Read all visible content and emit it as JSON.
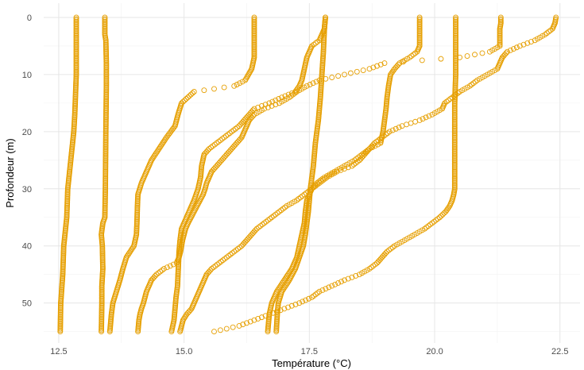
{
  "chart_data": {
    "type": "scatter",
    "title": "",
    "xlabel": "Température (°C)",
    "ylabel": "Profondeur (m)",
    "xlim": [
      12.2,
      22.9
    ],
    "ylim": [
      57,
      -2.5
    ],
    "y_reversed": true,
    "x_ticks": [
      12.5,
      15.0,
      17.5,
      20.0,
      22.5
    ],
    "x_tick_labels": [
      "12.5",
      "15.0",
      "17.5",
      "20.0",
      "22.5"
    ],
    "y_ticks": [
      0,
      10,
      20,
      30,
      40,
      50
    ],
    "y_tick_labels": [
      "0",
      "10",
      "20",
      "30",
      "40",
      "50"
    ],
    "grid": true,
    "legend": "none",
    "marker": "open-circle",
    "marker_color": "#E69F00",
    "series": [
      {
        "profile": [
          [
            0,
            12.85
          ],
          [
            5,
            12.85
          ],
          [
            10,
            12.85
          ],
          [
            17,
            12.82
          ],
          [
            20,
            12.8
          ],
          [
            25,
            12.74
          ],
          [
            30,
            12.68
          ],
          [
            35,
            12.66
          ],
          [
            40,
            12.6
          ],
          [
            45,
            12.58
          ],
          [
            50,
            12.54
          ],
          [
            55,
            12.53
          ]
        ]
      },
      {
        "profile": [
          [
            0,
            13.42
          ],
          [
            3,
            13.42
          ],
          [
            4,
            13.44
          ],
          [
            8,
            13.45
          ],
          [
            12,
            13.45
          ],
          [
            20,
            13.44
          ],
          [
            30,
            13.43
          ],
          [
            35,
            13.42
          ],
          [
            36,
            13.38
          ],
          [
            38,
            13.35
          ],
          [
            40,
            13.37
          ],
          [
            44,
            13.38
          ],
          [
            47,
            13.36
          ],
          [
            50,
            13.36
          ],
          [
            55,
            13.35
          ]
        ]
      },
      {
        "profile": [
          [
            0,
            16.4
          ],
          [
            7,
            16.4
          ],
          [
            9,
            16.35
          ],
          [
            11,
            16.22
          ],
          [
            12,
            16.0
          ],
          [
            13,
            15.2
          ],
          [
            15,
            14.95
          ],
          [
            17,
            14.88
          ],
          [
            19,
            14.82
          ],
          [
            21,
            14.65
          ],
          [
            23,
            14.5
          ],
          [
            25,
            14.35
          ],
          [
            27,
            14.25
          ],
          [
            29,
            14.15
          ],
          [
            31,
            14.08
          ],
          [
            33,
            14.07
          ],
          [
            36,
            14.06
          ],
          [
            38,
            14.05
          ],
          [
            40,
            14.0
          ],
          [
            42,
            13.85
          ],
          [
            44,
            13.78
          ],
          [
            46,
            13.72
          ],
          [
            48,
            13.65
          ],
          [
            50,
            13.58
          ],
          [
            52,
            13.55
          ],
          [
            55,
            13.52
          ]
        ]
      },
      {
        "profile": [
          [
            0,
            17.82
          ],
          [
            2,
            17.8
          ],
          [
            3,
            17.75
          ],
          [
            4,
            17.7
          ],
          [
            5,
            17.55
          ],
          [
            7,
            17.45
          ],
          [
            9,
            17.4
          ],
          [
            11,
            17.35
          ],
          [
            12,
            17.3
          ],
          [
            13,
            17.22
          ],
          [
            14,
            16.95
          ],
          [
            15,
            16.7
          ],
          [
            16,
            16.4
          ],
          [
            17,
            16.3
          ],
          [
            18,
            16.2
          ],
          [
            19,
            16.1
          ],
          [
            20,
            15.95
          ],
          [
            21,
            15.8
          ],
          [
            22,
            15.65
          ],
          [
            23,
            15.5
          ],
          [
            24,
            15.4
          ],
          [
            26,
            15.35
          ],
          [
            28,
            15.33
          ],
          [
            30,
            15.28
          ],
          [
            32,
            15.2
          ],
          [
            34,
            15.1
          ],
          [
            36,
            15.0
          ],
          [
            37,
            14.95
          ],
          [
            39,
            14.92
          ],
          [
            41,
            14.9
          ],
          [
            43,
            14.89
          ],
          [
            45,
            14.88
          ],
          [
            47,
            14.87
          ],
          [
            49,
            14.84
          ],
          [
            51,
            14.82
          ],
          [
            53,
            14.8
          ],
          [
            55,
            14.75
          ]
        ]
      },
      {
        "profile": [
          [
            0,
            19.7
          ],
          [
            5,
            19.7
          ],
          [
            6,
            19.65
          ],
          [
            7,
            19.5
          ],
          [
            8,
            19.3
          ],
          [
            9,
            19.2
          ],
          [
            10,
            19.12
          ],
          [
            12,
            19.08
          ],
          [
            14,
            19.05
          ],
          [
            16,
            19.03
          ],
          [
            18,
            19.0
          ],
          [
            20,
            18.97
          ],
          [
            22,
            18.92
          ],
          [
            23,
            18.7
          ],
          [
            24,
            18.55
          ],
          [
            25,
            18.4
          ],
          [
            26,
            18.2
          ],
          [
            27,
            18.0
          ],
          [
            28,
            17.8
          ],
          [
            29,
            17.65
          ],
          [
            30,
            17.55
          ],
          [
            32,
            17.45
          ],
          [
            34,
            17.42
          ],
          [
            36,
            17.4
          ],
          [
            38,
            17.35
          ],
          [
            40,
            17.3
          ],
          [
            42,
            17.25
          ],
          [
            44,
            17.15
          ],
          [
            46,
            17.0
          ],
          [
            48,
            16.85
          ],
          [
            50,
            16.75
          ],
          [
            52,
            16.7
          ],
          [
            55,
            16.67
          ]
        ]
      },
      {
        "profile": [
          [
            0,
            20.42
          ],
          [
            3,
            20.42
          ],
          [
            5,
            20.42
          ],
          [
            10,
            20.42
          ],
          [
            15,
            20.4
          ],
          [
            20,
            20.4
          ],
          [
            25,
            20.4
          ],
          [
            30,
            20.4
          ],
          [
            31,
            20.38
          ],
          [
            32,
            20.35
          ],
          [
            33,
            20.3
          ],
          [
            34,
            20.22
          ],
          [
            35,
            20.1
          ],
          [
            36,
            19.95
          ],
          [
            37,
            19.8
          ],
          [
            38,
            19.6
          ],
          [
            39,
            19.4
          ],
          [
            40,
            19.2
          ],
          [
            41,
            19.05
          ],
          [
            42,
            18.95
          ],
          [
            43,
            18.85
          ],
          [
            44,
            18.7
          ],
          [
            45,
            18.5
          ],
          [
            46,
            18.2
          ],
          [
            47,
            17.95
          ],
          [
            48,
            17.7
          ],
          [
            49,
            17.55
          ],
          [
            50,
            17.3
          ],
          [
            51,
            17.0
          ],
          [
            52,
            16.7
          ],
          [
            53,
            16.4
          ],
          [
            54,
            16.1
          ],
          [
            55,
            15.6
          ]
        ]
      },
      {
        "profile": [
          [
            0,
            21.32
          ],
          [
            1,
            21.32
          ],
          [
            2,
            21.3
          ],
          [
            3,
            21.3
          ],
          [
            4,
            21.3
          ],
          [
            5,
            21.3
          ],
          [
            6,
            21.1
          ],
          [
            7,
            20.5
          ],
          [
            8,
            19.0
          ],
          [
            9,
            18.7
          ],
          [
            10,
            18.2
          ],
          [
            11,
            17.7
          ],
          [
            12,
            17.45
          ],
          [
            13,
            17.25
          ],
          [
            14,
            17.1
          ],
          [
            15,
            16.9
          ],
          [
            16,
            16.6
          ],
          [
            17,
            16.4
          ],
          [
            18,
            16.3
          ],
          [
            19,
            16.25
          ],
          [
            20,
            16.2
          ],
          [
            21,
            16.15
          ],
          [
            22,
            16.05
          ],
          [
            23,
            15.95
          ],
          [
            24,
            15.85
          ],
          [
            25,
            15.75
          ],
          [
            26,
            15.65
          ],
          [
            27,
            15.55
          ],
          [
            28,
            15.5
          ],
          [
            29,
            15.45
          ],
          [
            30,
            15.42
          ],
          [
            31,
            15.38
          ],
          [
            32,
            15.32
          ],
          [
            33,
            15.26
          ],
          [
            34,
            15.2
          ],
          [
            35,
            15.14
          ],
          [
            36,
            15.08
          ],
          [
            37,
            15.03
          ],
          [
            38,
            15.0
          ],
          [
            39,
            14.97
          ],
          [
            40,
            14.95
          ],
          [
            41,
            14.93
          ],
          [
            42,
            14.9
          ],
          [
            43,
            14.85
          ],
          [
            44,
            14.6
          ],
          [
            45,
            14.45
          ],
          [
            46,
            14.35
          ],
          [
            47,
            14.3
          ],
          [
            48,
            14.25
          ],
          [
            49,
            14.22
          ],
          [
            50,
            14.19
          ],
          [
            51,
            14.15
          ],
          [
            52,
            14.12
          ],
          [
            53,
            14.1
          ],
          [
            55,
            14.08
          ]
        ]
      },
      {
        "profile": [
          [
            0,
            22.42
          ],
          [
            1,
            22.4
          ],
          [
            2,
            22.35
          ],
          [
            3,
            22.2
          ],
          [
            4,
            22.0
          ],
          [
            5,
            21.7
          ],
          [
            6,
            21.45
          ],
          [
            7,
            21.35
          ],
          [
            8,
            21.3
          ],
          [
            9,
            21.25
          ],
          [
            10,
            21.05
          ],
          [
            11,
            20.85
          ],
          [
            12,
            20.7
          ],
          [
            13,
            20.5
          ],
          [
            14,
            20.35
          ],
          [
            15,
            20.2
          ],
          [
            16,
            20.15
          ],
          [
            17,
            19.95
          ],
          [
            18,
            19.7
          ],
          [
            19,
            19.35
          ],
          [
            20,
            19.1
          ],
          [
            21,
            18.95
          ],
          [
            22,
            18.8
          ],
          [
            23,
            18.7
          ],
          [
            24,
            18.6
          ],
          [
            25,
            18.5
          ],
          [
            26,
            18.35
          ],
          [
            27,
            18.05
          ],
          [
            28,
            17.85
          ],
          [
            29,
            17.7
          ],
          [
            30,
            17.55
          ],
          [
            31,
            17.4
          ],
          [
            32,
            17.25
          ],
          [
            33,
            17.05
          ],
          [
            34,
            16.9
          ],
          [
            35,
            16.75
          ],
          [
            36,
            16.6
          ],
          [
            37,
            16.45
          ],
          [
            38,
            16.35
          ],
          [
            39,
            16.25
          ],
          [
            40,
            16.15
          ],
          [
            41,
            16.0
          ],
          [
            42,
            15.85
          ],
          [
            43,
            15.7
          ],
          [
            44,
            15.55
          ],
          [
            45,
            15.45
          ],
          [
            46,
            15.4
          ],
          [
            47,
            15.35
          ],
          [
            48,
            15.3
          ],
          [
            49,
            15.25
          ],
          [
            50,
            15.2
          ],
          [
            51,
            15.15
          ],
          [
            52,
            15.05
          ],
          [
            53,
            14.98
          ],
          [
            54,
            14.95
          ],
          [
            55,
            14.92
          ]
        ]
      },
      {
        "profile": [
          [
            0,
            17.82
          ],
          [
            2,
            17.8
          ],
          [
            6,
            17.78
          ],
          [
            10,
            17.75
          ],
          [
            14,
            17.72
          ],
          [
            18,
            17.68
          ],
          [
            22,
            17.62
          ],
          [
            26,
            17.58
          ],
          [
            30,
            17.52
          ],
          [
            34,
            17.48
          ],
          [
            36,
            17.45
          ],
          [
            38,
            17.42
          ],
          [
            40,
            17.38
          ],
          [
            42,
            17.3
          ],
          [
            44,
            17.22
          ],
          [
            46,
            17.1
          ],
          [
            48,
            16.95
          ],
          [
            50,
            16.88
          ],
          [
            52,
            16.86
          ],
          [
            55,
            16.84
          ]
        ]
      }
    ]
  }
}
